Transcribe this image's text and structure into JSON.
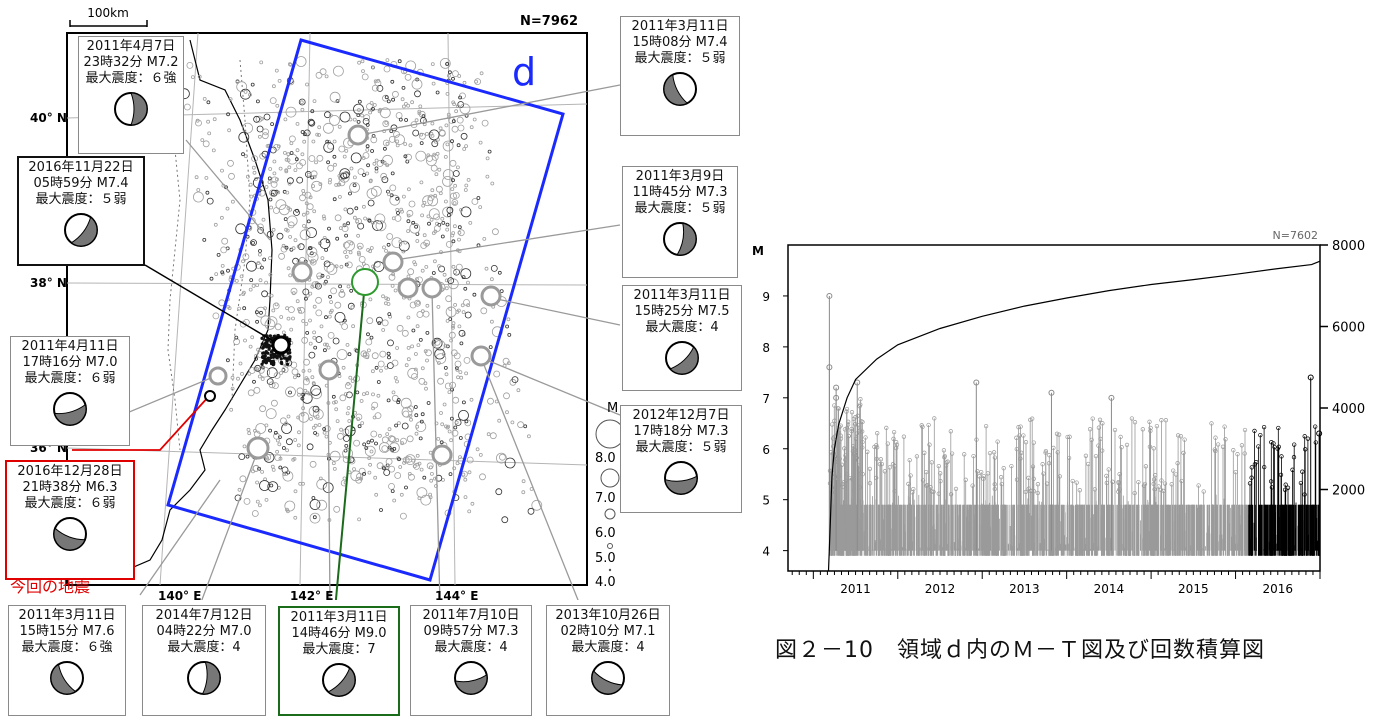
{
  "map": {
    "scale_label": "100km",
    "count_label": "N=7962",
    "region_label": "d",
    "lat_labels": [
      "40° N",
      "38° N",
      "36° N"
    ],
    "lon_labels": [
      "140° E",
      "142° E",
      "144° E"
    ],
    "magnitude_legend": {
      "title": "M",
      "labels": [
        "8.0",
        "7.0",
        "6.0",
        "5.0",
        "4.0"
      ]
    },
    "current_quake_label": "今回の地震"
  },
  "events": [
    {
      "date": "2011年4月7日",
      "time": "23時32分  M7.2",
      "intensity": "最大震度：６強",
      "style": "normal"
    },
    {
      "date": "2016年11月22日",
      "time": "05時59分  M7.4",
      "intensity": "最大震度：５弱",
      "style": "black"
    },
    {
      "date": "2011年4月11日",
      "time": "17時16分  M7.0",
      "intensity": "最大震度：６弱",
      "style": "normal"
    },
    {
      "date": "2016年12月28日",
      "time": "21時38分  M6.3",
      "intensity": "最大震度：６弱",
      "style": "red"
    },
    {
      "date": "2011年3月11日",
      "time": "15時15分  M7.6",
      "intensity": "最大震度：６強",
      "style": "normal"
    },
    {
      "date": "2014年7月12日",
      "time": "04時22分  M7.0",
      "intensity": "最大震度：4",
      "style": "normal"
    },
    {
      "date": "2011年3月11日",
      "time": "14時46分  M9.0",
      "intensity": "最大震度：7",
      "style": "green"
    },
    {
      "date": "2011年7月10日",
      "time": "09時57分  M7.3",
      "intensity": "最大震度：4",
      "style": "normal"
    },
    {
      "date": "2013年10月26日",
      "time": "02時10分  M7.1",
      "intensity": "最大震度：4",
      "style": "normal"
    },
    {
      "date": "2011年3月11日",
      "time": "15時08分  M7.4",
      "intensity": "最大震度：５弱",
      "style": "normal"
    },
    {
      "date": "2011年3月9日",
      "time": "11時45分  M7.3",
      "intensity": "最大震度：５弱",
      "style": "normal"
    },
    {
      "date": "2011年3月11日",
      "time": "15時25分  M7.5",
      "intensity": "最大震度：4",
      "style": "normal"
    },
    {
      "date": "2012年12月7日",
      "time": "17時18分  M7.3",
      "intensity": "最大震度：５弱",
      "style": "normal"
    }
  ],
  "chart_data": {
    "type": "line",
    "count_label": "N=7602",
    "ylabel_left": "M",
    "ylim_left": [
      3.6,
      10
    ],
    "yticks_left": [
      "4",
      "5",
      "6",
      "7",
      "8",
      "9"
    ],
    "ylim_right": [
      0,
      8000
    ],
    "yticks_right": [
      "2000",
      "4000",
      "6000",
      "8000"
    ],
    "xlim": [
      2010.7,
      2017.0
    ],
    "xtick_labels": [
      "2011",
      "2012",
      "2013",
      "2014",
      "2015",
      "2016"
    ],
    "series": [
      {
        "x": [
          2011.18,
          2011.2,
          2011.22,
          2011.25,
          2011.3,
          2011.4,
          2011.5,
          2011.75,
          2012.0,
          2012.5,
          2013.0,
          2013.5,
          2014.0,
          2014.5,
          2015.0,
          2015.5,
          2016.0,
          2016.5,
          2016.9,
          2017.0
        ],
        "y": [
          0,
          1100,
          2300,
          3000,
          3600,
          4250,
          4700,
          5200,
          5550,
          5950,
          6250,
          6500,
          6700,
          6880,
          7030,
          7150,
          7280,
          7420,
          7520,
          7602
        ]
      }
    ],
    "notable_events": [
      {
        "x": 2011.19,
        "y": 9.0
      },
      {
        "x": 2011.19,
        "y": 7.6
      },
      {
        "x": 2011.27,
        "y": 7.2
      },
      {
        "x": 2011.27,
        "y": 7.0
      },
      {
        "x": 2011.52,
        "y": 7.3
      },
      {
        "x": 2012.93,
        "y": 7.3
      },
      {
        "x": 2013.82,
        "y": 7.1
      },
      {
        "x": 2014.53,
        "y": 7.0
      },
      {
        "x": 2016.89,
        "y": 7.4
      },
      {
        "x": 2016.99,
        "y": 6.3
      }
    ]
  },
  "caption": "図２－10　領域ｄ内のＭ－Ｔ図及び回数積算図"
}
